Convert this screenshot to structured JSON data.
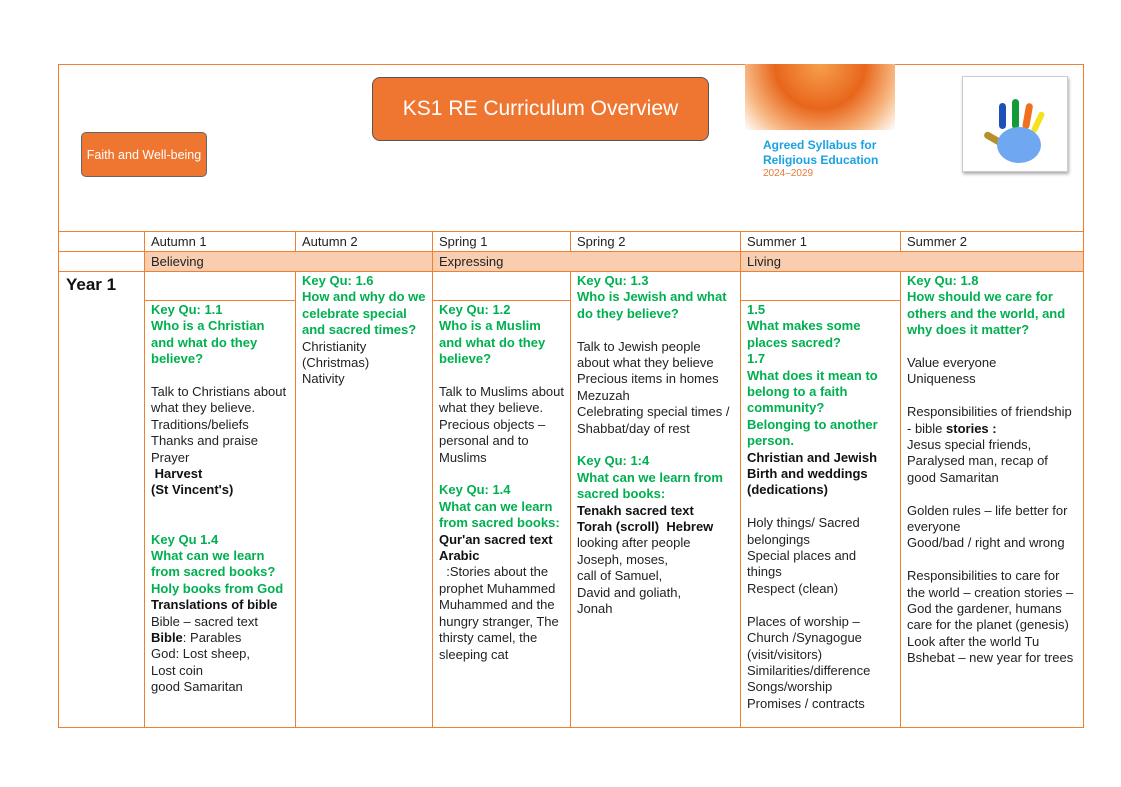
{
  "header": {
    "title": "KS1 RE Curriculum Overview",
    "faith_box": "Faith and Well-being",
    "syllabus_title": "Agreed Syllabus for Religious Education",
    "syllabus_years": "2024–2029",
    "hand_logo": "hand-curriculum-logo"
  },
  "terms": [
    "Autumn 1",
    "Autumn 2",
    "Spring 1",
    "Spring 2",
    "Summer 1",
    "Summer 2"
  ],
  "themes": [
    "Believing",
    "Expressing",
    "Living"
  ],
  "year_label": "Year 1",
  "colors": {
    "border": "#f07f30",
    "accent": "#ee7630",
    "theme_bg": "#f9cdb0",
    "key_question": "#00b050"
  },
  "cells": [
    [
      {
        "s": "g",
        "t": "Key Qu: 1.1"
      },
      {
        "s": "g",
        "t": "Who is a Christian and what do they believe?"
      },
      {
        "s": "gap"
      },
      {
        "s": "n",
        "t": "Talk to Christians about what they believe."
      },
      {
        "s": "n",
        "t": "Traditions/beliefs"
      },
      {
        "s": "n",
        "t": "Thanks and praise"
      },
      {
        "s": "n",
        "t": "Prayer"
      },
      {
        "s": "b",
        "t": " Harvest"
      },
      {
        "s": "b",
        "t": "(St Vincent's)"
      },
      {
        "s": "gap"
      },
      {
        "s": "gap"
      },
      {
        "s": "g",
        "t": "Key Qu 1.4"
      },
      {
        "s": "g",
        "t": "What can we learn from sacred books?"
      },
      {
        "s": "g",
        "t": "Holy books from God"
      },
      {
        "s": "b",
        "t": "Translations of bible"
      },
      {
        "s": "n",
        "t": "Bible – sacred text"
      },
      {
        "s": "mix",
        "b": "Bible",
        "t": ": Parables"
      },
      {
        "s": "n",
        "t": "God: Lost sheep,"
      },
      {
        "s": "n",
        "t": "Lost coin"
      },
      {
        "s": "n",
        "t": "good Samaritan"
      }
    ],
    [
      {
        "s": "g",
        "t": "Key Qu: 1.6"
      },
      {
        "s": "g",
        "t": "How and why do we celebrate special and sacred times?"
      },
      {
        "s": "n",
        "t": "Christianity (Christmas)"
      },
      {
        "s": "n",
        "t": "Nativity"
      }
    ],
    [
      {
        "s": "g",
        "t": "Key Qu: 1.2"
      },
      {
        "s": "g",
        "t": "Who is a Muslim and what do they believe?"
      },
      {
        "s": "gap"
      },
      {
        "s": "n",
        "t": "Talk to Muslims about what they believe."
      },
      {
        "s": "n",
        "t": "Precious objects – personal and to Muslims"
      },
      {
        "s": "gap"
      },
      {
        "s": "g",
        "t": "Key Qu: 1.4"
      },
      {
        "s": "g",
        "t": "What can we learn from sacred books:"
      },
      {
        "s": "b",
        "t": "Qur'an sacred text Arabic"
      },
      {
        "s": "n",
        "t": "  :Stories about the prophet Muhammed"
      },
      {
        "s": "n",
        "t": "Muhammed and the hungry stranger, The thirsty camel, the sleeping cat"
      }
    ],
    [
      {
        "s": "g",
        "t": "Key Qu: 1.3"
      },
      {
        "s": "g",
        "t": "Who is Jewish and what do they believe?"
      },
      {
        "s": "gap"
      },
      {
        "s": "n",
        "t": "Talk to Jewish people about what they believe"
      },
      {
        "s": "n",
        "t": "Precious items in homes Mezuzah"
      },
      {
        "s": "n",
        "t": "Celebrating special times / Shabbat/day of rest"
      },
      {
        "s": "gap"
      },
      {
        "s": "g",
        "t": "Key Qu: 1:4"
      },
      {
        "s": "g",
        "t": "What can we learn from sacred books:"
      },
      {
        "s": "b",
        "t": "Tenakh sacred text"
      },
      {
        "s": "b",
        "t": "Torah (scroll)  Hebrew"
      },
      {
        "s": "n",
        "t": "looking after people"
      },
      {
        "s": "n",
        "t": "Joseph, moses,"
      },
      {
        "s": "n",
        "t": "call of Samuel,"
      },
      {
        "s": "n",
        "t": "David and goliath,"
      },
      {
        "s": "n",
        "t": "Jonah"
      }
    ],
    [
      {
        "s": "g",
        "t": "1.5"
      },
      {
        "s": "g",
        "t": "What makes some places sacred?"
      },
      {
        "s": "g",
        "t": "1.7"
      },
      {
        "s": "g",
        "t": "What does it mean to belong to a faith community?"
      },
      {
        "s": "g",
        "t": "Belonging to another person."
      },
      {
        "s": "b",
        "t": "Christian and Jewish Birth and weddings (dedications)"
      },
      {
        "s": "gap"
      },
      {
        "s": "n",
        "t": "Holy things/ Sacred belongings"
      },
      {
        "s": "n",
        "t": "Special places and things"
      },
      {
        "s": "n",
        "t": "Respect (clean)"
      },
      {
        "s": "gap"
      },
      {
        "s": "n",
        "t": "Places of worship – Church /Synagogue (visit/visitors)"
      },
      {
        "s": "n",
        "t": "Similarities/difference"
      },
      {
        "s": "n",
        "t": "Songs/worship"
      },
      {
        "s": "n",
        "t": "Promises / contracts"
      }
    ],
    [
      {
        "s": "g",
        "t": "Key Qu: 1.8"
      },
      {
        "s": "g",
        "t": "How should we care for others and the world, and why does it matter?"
      },
      {
        "s": "gap"
      },
      {
        "s": "n",
        "t": "Value everyone"
      },
      {
        "s": "n",
        "t": "Uniqueness"
      },
      {
        "s": "gap"
      },
      {
        "s": "mix",
        "t": "Responsibilities of friendship  - bible ",
        "b2": "stories :"
      },
      {
        "s": "n",
        "t": "Jesus special friends, Paralysed man, recap of good Samaritan"
      },
      {
        "s": "gap"
      },
      {
        "s": "n",
        "t": "Golden rules – life better for everyone"
      },
      {
        "s": "n",
        "t": "Good/bad / right and wrong"
      },
      {
        "s": "gap"
      },
      {
        "s": "n",
        "t": "Responsibilities to care for the world – creation stories –  God the gardener, humans care for the planet (genesis)"
      },
      {
        "s": "n",
        "t": "Look after the world Tu Bshebat – new year for trees"
      }
    ]
  ]
}
